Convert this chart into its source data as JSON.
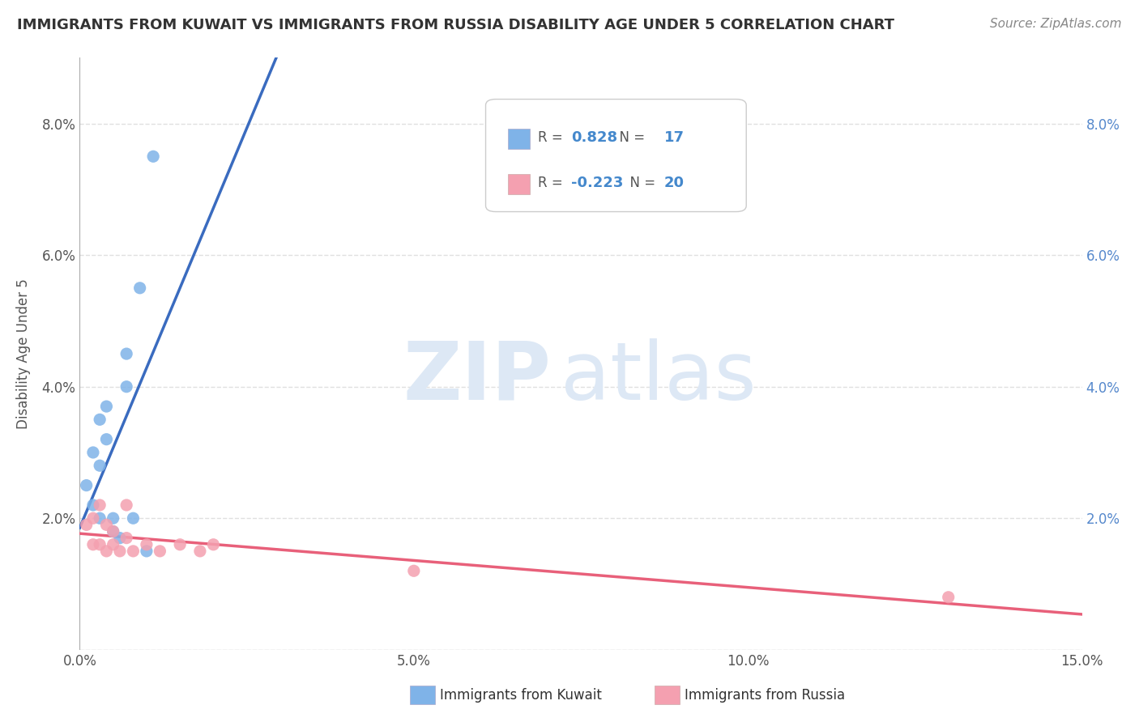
{
  "title": "IMMIGRANTS FROM KUWAIT VS IMMIGRANTS FROM RUSSIA DISABILITY AGE UNDER 5 CORRELATION CHART",
  "source": "Source: ZipAtlas.com",
  "ylabel": "Disability Age Under 5",
  "xlim": [
    0.0,
    0.15
  ],
  "ylim": [
    0.0,
    0.09
  ],
  "xticks": [
    0.0,
    0.05,
    0.1,
    0.15
  ],
  "yticks": [
    0.0,
    0.02,
    0.04,
    0.06,
    0.08
  ],
  "xtick_labels": [
    "0.0%",
    "5.0%",
    "10.0%",
    "15.0%"
  ],
  "ytick_labels_left": [
    "",
    "2.0%",
    "4.0%",
    "6.0%",
    "8.0%"
  ],
  "ytick_labels_right": [
    "",
    "2.0%",
    "4.0%",
    "6.0%",
    "8.0%"
  ],
  "kuwait_color": "#7fb3e8",
  "kuwait_line_color": "#3a6bbf",
  "russia_color": "#f4a0b0",
  "russia_line_color": "#e8607a",
  "kuwait_R": 0.828,
  "kuwait_N": 17,
  "russia_R": -0.223,
  "russia_N": 20,
  "kuwait_x": [
    0.001,
    0.002,
    0.002,
    0.003,
    0.003,
    0.003,
    0.004,
    0.004,
    0.005,
    0.005,
    0.006,
    0.007,
    0.007,
    0.008,
    0.009,
    0.01,
    0.011
  ],
  "kuwait_y": [
    0.025,
    0.022,
    0.03,
    0.028,
    0.035,
    0.02,
    0.037,
    0.032,
    0.018,
    0.02,
    0.017,
    0.04,
    0.045,
    0.02,
    0.055,
    0.015,
    0.075
  ],
  "russia_x": [
    0.001,
    0.002,
    0.002,
    0.003,
    0.003,
    0.004,
    0.004,
    0.005,
    0.005,
    0.006,
    0.007,
    0.007,
    0.008,
    0.01,
    0.012,
    0.015,
    0.018,
    0.02,
    0.05,
    0.13
  ],
  "russia_y": [
    0.019,
    0.016,
    0.02,
    0.022,
    0.016,
    0.019,
    0.015,
    0.018,
    0.016,
    0.015,
    0.017,
    0.022,
    0.015,
    0.016,
    0.015,
    0.016,
    0.015,
    0.016,
    0.012,
    0.008
  ],
  "watermark_zip_color": "#dde8f5",
  "watermark_atlas_color": "#dde8f5",
  "background_color": "#ffffff",
  "grid_color": "#e0e0e0"
}
